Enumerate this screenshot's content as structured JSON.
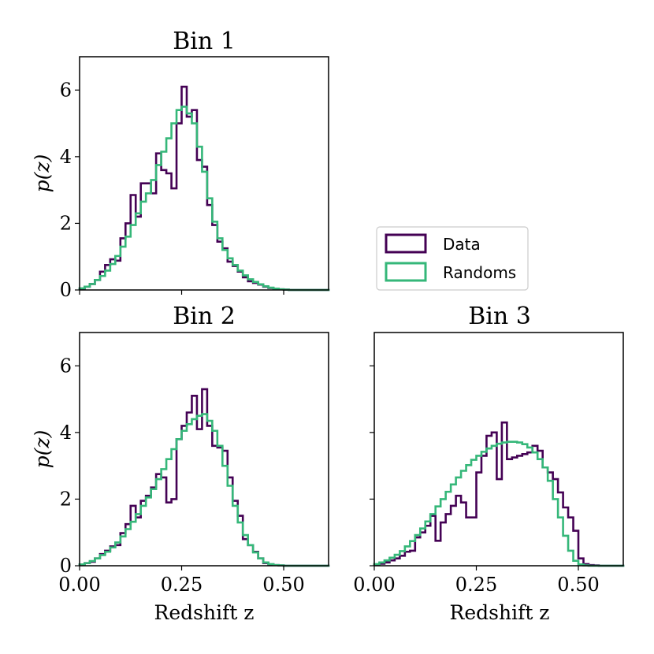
{
  "colors": {
    "data": "#440154",
    "randoms": "#35b779"
  },
  "legend": {
    "entries": [
      "Data",
      "Randoms"
    ],
    "placement": "center-right"
  },
  "chart_data": [
    {
      "type": "step-histogram",
      "title": "Bin 1",
      "xlabel": "",
      "ylabel": "p(z)",
      "xlim": [
        0,
        0.61
      ],
      "ylim": [
        0,
        7
      ],
      "xticks": [
        0.0,
        0.25,
        0.5
      ],
      "xtick_labels": [],
      "yticks": [
        0,
        2,
        4,
        6
      ],
      "ytick_labels": [
        "0",
        "2",
        "4",
        "6"
      ],
      "bin_width": 0.0125,
      "series": [
        {
          "name": "Data",
          "values": [
            0.03,
            0.1,
            0.18,
            0.3,
            0.55,
            0.75,
            0.92,
            0.88,
            1.55,
            2.0,
            2.85,
            2.2,
            3.2,
            3.2,
            2.9,
            4.1,
            3.6,
            3.5,
            3.05,
            5.0,
            6.1,
            5.2,
            5.4,
            3.9,
            3.7,
            2.55,
            1.95,
            1.45,
            1.25,
            0.85,
            0.72,
            0.55,
            0.38,
            0.26,
            0.21,
            0.16,
            0.1,
            0.06,
            0.04,
            0.02,
            0.01,
            0.0,
            0.0,
            0.0,
            0.0,
            0.0,
            0.0,
            0.0,
            0.0
          ]
        },
        {
          "name": "Randoms",
          "values": [
            0.05,
            0.1,
            0.18,
            0.3,
            0.42,
            0.58,
            0.78,
            1.02,
            1.3,
            1.6,
            1.95,
            2.3,
            2.65,
            2.9,
            3.3,
            3.75,
            4.15,
            4.55,
            5.0,
            5.4,
            5.5,
            5.3,
            5.0,
            4.3,
            3.55,
            2.75,
            2.05,
            1.55,
            1.2,
            0.95,
            0.75,
            0.58,
            0.44,
            0.32,
            0.24,
            0.17,
            0.11,
            0.07,
            0.04,
            0.02,
            0.01,
            0.0,
            0.0,
            0.0,
            0.0,
            0.0,
            0.0,
            0.0,
            0.0
          ]
        }
      ]
    },
    {
      "type": "step-histogram",
      "title": "Bin 2",
      "xlabel": "Redshift z",
      "ylabel": "p(z)",
      "xlim": [
        0,
        0.61
      ],
      "ylim": [
        0,
        7
      ],
      "xticks": [
        0.0,
        0.25,
        0.5
      ],
      "xtick_labels": [
        "0.00",
        "0.25",
        "0.50"
      ],
      "yticks": [
        0,
        2,
        4,
        6
      ],
      "ytick_labels": [
        "0",
        "2",
        "4",
        "6"
      ],
      "bin_width": 0.0125,
      "series": [
        {
          "name": "Data",
          "values": [
            0.03,
            0.08,
            0.12,
            0.22,
            0.35,
            0.45,
            0.58,
            0.62,
            0.98,
            1.25,
            1.8,
            1.45,
            1.95,
            2.1,
            2.35,
            2.75,
            2.65,
            1.9,
            2.0,
            3.8,
            4.2,
            4.6,
            5.1,
            4.1,
            5.3,
            4.2,
            3.6,
            3.55,
            3.45,
            2.65,
            1.95,
            1.5,
            0.8,
            0.62,
            0.42,
            0.22,
            0.08,
            0.04,
            0.02,
            0.01,
            0.0,
            0.0,
            0.0,
            0.0,
            0.0,
            0.0,
            0.0,
            0.0,
            0.0
          ]
        },
        {
          "name": "Randoms",
          "values": [
            0.04,
            0.08,
            0.14,
            0.22,
            0.32,
            0.42,
            0.55,
            0.7,
            0.88,
            1.1,
            1.32,
            1.55,
            1.8,
            2.05,
            2.3,
            2.6,
            2.9,
            3.2,
            3.5,
            3.8,
            4.05,
            4.25,
            4.4,
            4.5,
            4.55,
            4.35,
            4.05,
            3.6,
            3.0,
            2.4,
            1.8,
            1.3,
            0.92,
            0.62,
            0.4,
            0.22,
            0.1,
            0.05,
            0.02,
            0.01,
            0.0,
            0.0,
            0.0,
            0.0,
            0.0,
            0.0,
            0.0,
            0.0,
            0.0
          ]
        }
      ]
    },
    {
      "type": "step-histogram",
      "title": "Bin 3",
      "xlabel": "Redshift z",
      "ylabel": "",
      "xlim": [
        0,
        0.61
      ],
      "ylim": [
        0,
        7
      ],
      "xticks": [
        0.0,
        0.25,
        0.5
      ],
      "xtick_labels": [
        "0.00",
        "0.25",
        "0.50"
      ],
      "yticks": [
        0,
        2,
        4,
        6
      ],
      "ytick_labels": [],
      "bin_width": 0.0125,
      "series": [
        {
          "name": "Data",
          "values": [
            0.03,
            0.06,
            0.1,
            0.16,
            0.22,
            0.3,
            0.42,
            0.45,
            0.85,
            1.0,
            1.2,
            1.5,
            0.75,
            1.3,
            1.55,
            1.8,
            2.1,
            1.9,
            1.45,
            1.45,
            2.8,
            3.3,
            3.9,
            4.0,
            2.6,
            4.3,
            3.2,
            3.25,
            3.3,
            3.35,
            3.4,
            3.6,
            3.45,
            2.95,
            2.8,
            2.6,
            2.2,
            1.75,
            1.45,
            1.05,
            0.22,
            0.05,
            0.02,
            0.01,
            0.0,
            0.0,
            0.0,
            0.0,
            0.0
          ]
        },
        {
          "name": "Randoms",
          "values": [
            0.05,
            0.1,
            0.16,
            0.24,
            0.33,
            0.44,
            0.58,
            0.74,
            0.92,
            1.12,
            1.33,
            1.55,
            1.78,
            2.0,
            2.22,
            2.44,
            2.65,
            2.85,
            3.02,
            3.18,
            3.3,
            3.42,
            3.52,
            3.6,
            3.66,
            3.7,
            3.72,
            3.72,
            3.7,
            3.65,
            3.55,
            3.4,
            3.2,
            2.95,
            2.55,
            2.0,
            1.45,
            0.9,
            0.45,
            0.15,
            0.04,
            0.01,
            0.0,
            0.0,
            0.0,
            0.0,
            0.0,
            0.0,
            0.0
          ]
        }
      ]
    }
  ]
}
